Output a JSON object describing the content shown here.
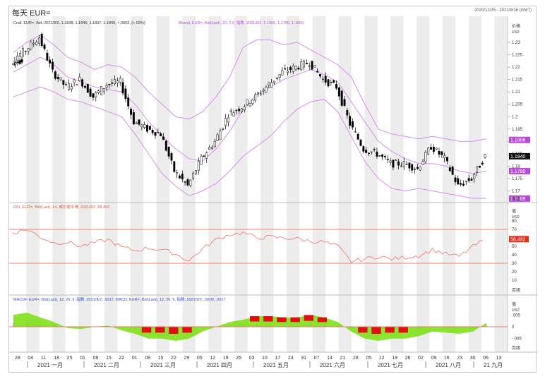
{
  "window": {
    "title": "每天 EUR=",
    "date_range": "2020/12/25 - 2021/9/16 (GMT)"
  },
  "colors": {
    "bull_body": "#ffffff",
    "bear_body": "#000000",
    "band": "#d98cf0",
    "rsi": "#f08070",
    "ref_line": "#f08070",
    "macd_pos": "#7fe01a",
    "macd_neg": "#e01010",
    "grid_stripe": "#ececec",
    "label_purple": "#b84ad8"
  },
  "panels": {
    "price": {
      "legend_left": "Cndl, EUR=, Bid, 2021/9/2, 1.1838, 1.1846, 1.1837, 1.1840, +.0003, (+.03%)",
      "legend_right": "Bband, EUR=, Bid(Last), 20, 2.0, 指数, 2021/9/2, 1.1906, 1.1780, 1.1669",
      "axis_title": "价格",
      "axis_unit": "USD",
      "ticks": [
        "1.23",
        "1.225",
        "1.22",
        "1.215",
        "1.21",
        "1.205",
        "1.2",
        "1.195",
        "1.19",
        "1.185",
        "1.18",
        "1.175",
        "1.17"
      ],
      "labels": {
        "upper": "1.1906",
        "last": "1.1840",
        "middle": "1.1780",
        "lower": "1.1669"
      }
    },
    "rsi": {
      "legend": "RSI, EUR=, Bid(Last), 14, 威尔德平滑, 2021/9/2, 58.492",
      "axis_title": "值",
      "axis_unit": "USD",
      "ticks": [
        "80",
        "70",
        "60",
        "50",
        "40",
        "30",
        "20",
        "10"
      ],
      "last_label": "58.492",
      "footer": "百级"
    },
    "macd": {
      "legend": "MACDF, EUR=, Bid(Last), 12, 26, 9, 指数, 2021/9/2, .0017, MACD, EUR=, Bid(Last), 12, 26, 9, 指数, 2021/9/2, .0000, .0017",
      "axis_title": "值",
      "axis_unit": "USD",
      "ticks": [
        ".005",
        "0",
        "-.005"
      ],
      "footer": "百级"
    },
    "price_footer": "百级"
  },
  "x_axis": {
    "day_ticks": [
      "28",
      "04",
      "11",
      "18",
      "25",
      "01",
      "08",
      "15",
      "22",
      "01",
      "08",
      "15",
      "22",
      "29",
      "05",
      "12",
      "19",
      "26",
      "03",
      "10",
      "17",
      "24",
      "31",
      "07",
      "14",
      "21",
      "28",
      "05",
      "12",
      "19",
      "26",
      "02",
      "09",
      "16",
      "23",
      "30",
      "06",
      "13"
    ],
    "months": [
      "2021 一月",
      "2021 二月",
      "2021 三月",
      "2021 四月",
      "2021 五月",
      "2021 六月",
      "2021 七月",
      "2021 八月",
      "21 九月"
    ]
  },
  "chart_data": [
    {
      "type": "candlestick",
      "title": "EUR=",
      "ylabel": "价格 USD",
      "ylim": [
        1.167,
        1.236
      ],
      "x": [
        "2020-12-28",
        "2021-01-04",
        "2021-01-11",
        "2021-01-18",
        "2021-01-25",
        "2021-02-01",
        "2021-02-08",
        "2021-02-15",
        "2021-02-22",
        "2021-03-01",
        "2021-03-08",
        "2021-03-15",
        "2021-03-22",
        "2021-03-29",
        "2021-04-05",
        "2021-04-12",
        "2021-04-19",
        "2021-04-26",
        "2021-05-03",
        "2021-05-10",
        "2021-05-17",
        "2021-05-24",
        "2021-05-31",
        "2021-06-07",
        "2021-06-14",
        "2021-06-21",
        "2021-06-28",
        "2021-07-05",
        "2021-07-12",
        "2021-07-19",
        "2021-07-26",
        "2021-08-02",
        "2021-08-09",
        "2021-08-16",
        "2021-08-23",
        "2021-08-30"
      ],
      "close": [
        1.223,
        1.227,
        1.232,
        1.218,
        1.212,
        1.215,
        1.208,
        1.213,
        1.214,
        1.198,
        1.195,
        1.193,
        1.178,
        1.172,
        1.183,
        1.19,
        1.201,
        1.204,
        1.208,
        1.213,
        1.218,
        1.22,
        1.222,
        1.215,
        1.212,
        1.197,
        1.187,
        1.185,
        1.181,
        1.181,
        1.179,
        1.188,
        1.183,
        1.172,
        1.175,
        1.184
      ],
      "bollinger": {
        "upper": [
          1.226,
          1.23,
          1.233,
          1.229,
          1.224,
          1.222,
          1.219,
          1.221,
          1.22,
          1.216,
          1.21,
          1.205,
          1.2,
          1.199,
          1.202,
          1.208,
          1.216,
          1.228,
          1.231,
          1.231,
          1.229,
          1.23,
          1.227,
          1.224,
          1.221,
          1.216,
          1.205,
          1.195,
          1.193,
          1.192,
          1.191,
          1.192,
          1.191,
          1.19,
          1.19,
          1.191
        ],
        "middle": [
          1.218,
          1.221,
          1.224,
          1.221,
          1.216,
          1.214,
          1.212,
          1.211,
          1.21,
          1.205,
          1.198,
          1.192,
          1.187,
          1.183,
          1.182,
          1.187,
          1.194,
          1.203,
          1.209,
          1.212,
          1.215,
          1.217,
          1.219,
          1.217,
          1.214,
          1.206,
          1.198,
          1.19,
          1.186,
          1.183,
          1.181,
          1.181,
          1.18,
          1.178,
          1.177,
          1.178
        ],
        "lower": [
          1.208,
          1.21,
          1.212,
          1.21,
          1.207,
          1.206,
          1.204,
          1.202,
          1.2,
          1.193,
          1.185,
          1.177,
          1.172,
          1.168,
          1.17,
          1.173,
          1.178,
          1.184,
          1.188,
          1.192,
          1.198,
          1.203,
          1.206,
          1.207,
          1.202,
          1.192,
          1.182,
          1.175,
          1.171,
          1.17,
          1.171,
          1.17,
          1.169,
          1.168,
          1.167,
          1.167
        ]
      }
    },
    {
      "type": "line",
      "title": "RSI",
      "ylim": [
        0,
        90
      ],
      "reference_lines": [
        70,
        30
      ],
      "values": [
        66,
        70,
        61,
        54,
        55,
        50,
        54,
        58,
        49,
        45,
        48,
        46,
        41,
        33,
        47,
        58,
        64,
        66,
        60,
        61,
        60,
        59,
        56,
        55,
        50,
        32,
        35,
        38,
        35,
        37,
        39,
        46,
        41,
        38,
        50,
        58.492
      ]
    },
    {
      "type": "histogram",
      "title": "MACD",
      "ylim": [
        -0.009,
        0.009
      ],
      "values": [
        0.005,
        0.006,
        0.004,
        0.002,
        -0.0005,
        -0.001,
        0.0,
        0.0005,
        -0.0015,
        -0.003,
        -0.005,
        -0.005,
        -0.006,
        -0.005,
        -0.002,
        0.0,
        0.002,
        0.003,
        0.0045,
        0.0045,
        0.004,
        0.004,
        0.005,
        0.004,
        0.002,
        -0.002,
        -0.005,
        -0.006,
        -0.005,
        -0.005,
        -0.004,
        -0.002,
        -0.0025,
        -0.003,
        -0.002,
        0.0017
      ]
    }
  ]
}
